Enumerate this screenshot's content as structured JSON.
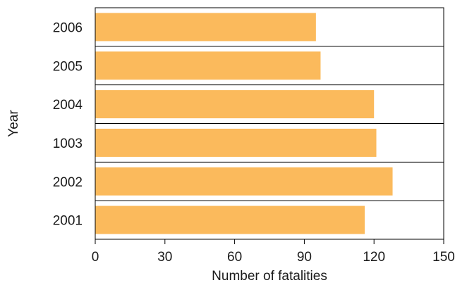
{
  "chart_data": {
    "type": "bar",
    "orientation": "horizontal",
    "title": "",
    "xlabel": "Number of fatalities",
    "ylabel": "Year",
    "categories": [
      "2006",
      "2005",
      "2004",
      "1003",
      "2002",
      "2001"
    ],
    "values": [
      95,
      97,
      120,
      121,
      128,
      116
    ],
    "xlim": [
      0,
      150
    ],
    "xticks": [
      "0",
      "30",
      "60",
      "90",
      "120",
      "150"
    ],
    "grid": "horizontal separators between bars",
    "legend": "none",
    "bar_color": "#fbba5c",
    "axis_color": "#000000"
  }
}
